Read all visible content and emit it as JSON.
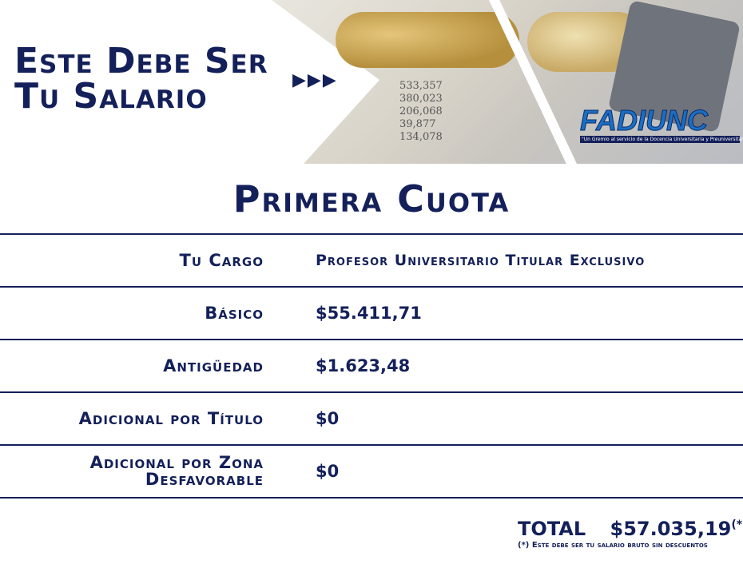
{
  "header": {
    "title_line1": "Este Debe Ser",
    "title_line2": "Tu Salario",
    "arrows": "▶▶▶",
    "logo": {
      "name": "FADIUNC",
      "tagline": "\"Un Gremio al servicio de la Docencia Universitaria y Preuniversitaria\""
    },
    "photo_numbers": [
      "533,357",
      "380,023",
      "206,068",
      "39,877",
      "134,078"
    ]
  },
  "section_title": "Primera Cuota",
  "rows": [
    {
      "label": "Tu Cargo",
      "value": "Profesor Universitario Titular Exclusivo"
    },
    {
      "label": "Básico",
      "value": "$55.411,71"
    },
    {
      "label": "Antigüedad",
      "value": "$1.623,48"
    },
    {
      "label": "Adicional por Título",
      "value": "$0"
    },
    {
      "label": "Adicional por Zona Desfavorable",
      "value": "$0"
    }
  ],
  "total": {
    "label": "TOTAL",
    "amount": "$57.035,19",
    "mark": "(*)",
    "note": "(*) Este debe ser tu salario bruto sin descuentos"
  },
  "colors": {
    "navy": "#13205a",
    "logo_blue": "#1a6fc4"
  }
}
